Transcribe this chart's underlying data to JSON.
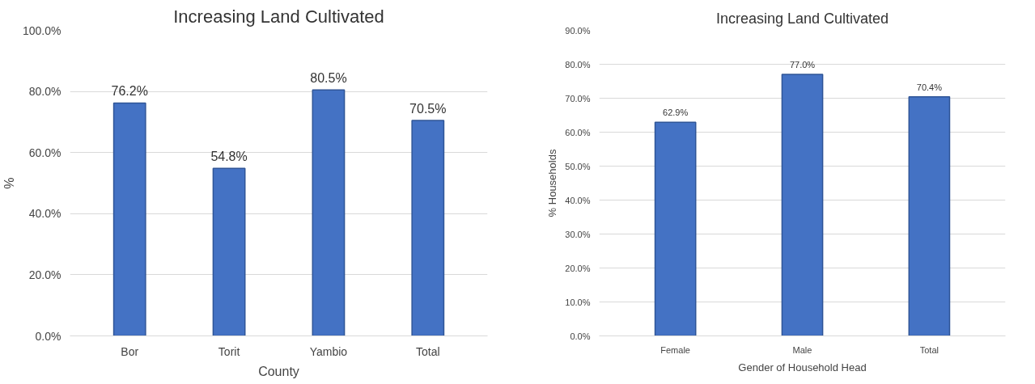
{
  "chart_data": [
    {
      "type": "bar",
      "title": "Increasing Land Cultivated",
      "xlabel": "County",
      "ylabel": "%",
      "categories": [
        "Bor",
        "Torit",
        "Yambio",
        "Total"
      ],
      "values": [
        76.2,
        54.8,
        80.5,
        70.5
      ],
      "value_labels": [
        "76.2%",
        "54.8%",
        "80.5%",
        "70.5%"
      ],
      "color": "#4472c4",
      "ylim": [
        0,
        100
      ],
      "yticks": [
        {
          "value": 0,
          "label": "0.0%"
        },
        {
          "value": 20,
          "label": "20.0%"
        },
        {
          "value": 40,
          "label": "40.0%"
        },
        {
          "value": 60,
          "label": "60.0%"
        },
        {
          "value": 80,
          "label": "80.0%"
        },
        {
          "value": 100,
          "label": "100.0%"
        }
      ],
      "grid": "y"
    },
    {
      "type": "bar",
      "title": "Increasing Land Cultivated",
      "xlabel": "Gender of Household Head",
      "ylabel": "% Households",
      "categories": [
        "Female",
        "Male",
        "Total"
      ],
      "values": [
        62.9,
        77.0,
        70.4
      ],
      "value_labels": [
        "62.9%",
        "77.0%",
        "70.4%"
      ],
      "color": "#4472c4",
      "ylim": [
        0,
        90
      ],
      "yticks": [
        {
          "value": 0,
          "label": "0.0%"
        },
        {
          "value": 10,
          "label": "10.0%"
        },
        {
          "value": 20,
          "label": "20.0%"
        },
        {
          "value": 30,
          "label": "30.0%"
        },
        {
          "value": 40,
          "label": "40.0%"
        },
        {
          "value": 50,
          "label": "50.0%"
        },
        {
          "value": 60,
          "label": "60.0%"
        },
        {
          "value": 70,
          "label": "70.0%"
        },
        {
          "value": 80,
          "label": "80.0%"
        },
        {
          "value": 90,
          "label": "90.0%"
        }
      ],
      "grid": "y"
    }
  ]
}
